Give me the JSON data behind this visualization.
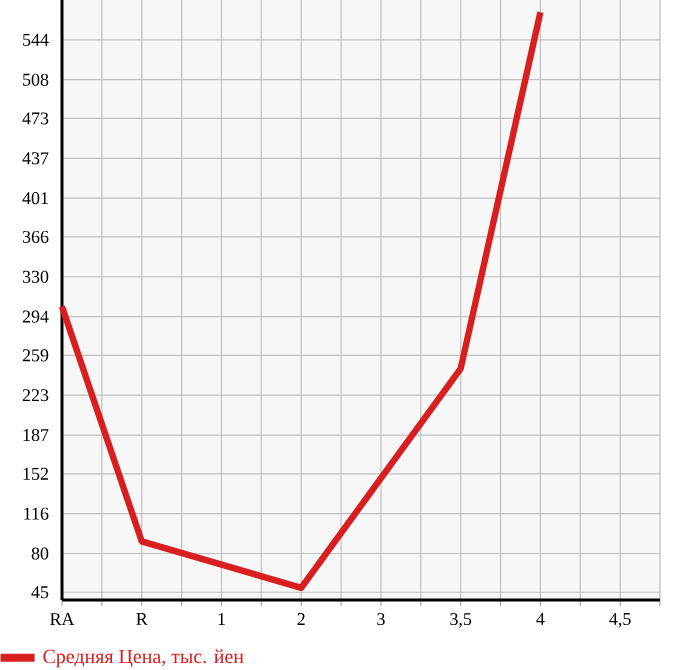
{
  "chart_data": {
    "type": "line",
    "categories": [
      "RA",
      "R",
      "1",
      "2",
      "3",
      "3,5",
      "4",
      "4,5"
    ],
    "series": [
      {
        "name": "Средняя Цена, тыс. йен",
        "color": "#d81e1e",
        "values": [
          303,
          91,
          null,
          49,
          null,
          247,
          569,
          null
        ]
      }
    ],
    "ylim": [
      38,
      580
    ],
    "yticks": [
      45,
      80,
      116,
      152,
      187,
      223,
      259,
      294,
      330,
      366,
      401,
      437,
      473,
      508,
      544
    ],
    "grid": true,
    "legend": "bottom left",
    "marker": "none",
    "line_style": "solid"
  }
}
